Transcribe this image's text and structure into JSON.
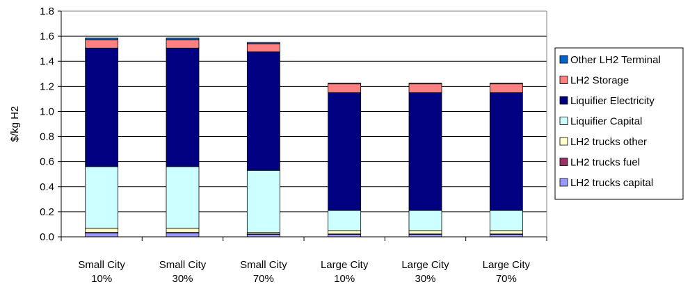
{
  "chart_data": {
    "type": "bar",
    "stacked": true,
    "title": "",
    "xlabel": "",
    "ylabel": "$/kg H2",
    "ylim": [
      0,
      1.8
    ],
    "yticks": [
      "0.0",
      "0.2",
      "0.4",
      "0.6",
      "0.8",
      "1.0",
      "1.2",
      "1.4",
      "1.6",
      "1.8"
    ],
    "grid": true,
    "legend_position": "right",
    "categories": [
      [
        "Small City",
        "10%"
      ],
      [
        "Small City",
        "30%"
      ],
      [
        "Small City",
        "70%"
      ],
      [
        "Large City",
        "10%"
      ],
      [
        "Large City",
        "30%"
      ],
      [
        "Large City",
        "70%"
      ]
    ],
    "series": [
      {
        "name": "LH2 trucks capital",
        "color": "#9999ff",
        "values": [
          0.03,
          0.03,
          0.02,
          0.02,
          0.02,
          0.02
        ]
      },
      {
        "name": "LH2 trucks fuel",
        "color": "#993366",
        "values": [
          0.005,
          0.005,
          0.003,
          0.003,
          0.003,
          0.003
        ]
      },
      {
        "name": "LH2 trucks other",
        "color": "#ffffcc",
        "values": [
          0.035,
          0.035,
          0.012,
          0.027,
          0.027,
          0.027
        ]
      },
      {
        "name": "Liquifier Capital",
        "color": "#ccffff",
        "values": [
          0.49,
          0.49,
          0.495,
          0.16,
          0.16,
          0.16
        ]
      },
      {
        "name": "Liquifier Electricity",
        "color": "#000080",
        "values": [
          0.945,
          0.945,
          0.945,
          0.94,
          0.94,
          0.94
        ]
      },
      {
        "name": "LH2 Storage",
        "color": "#ff8080",
        "values": [
          0.065,
          0.065,
          0.065,
          0.07,
          0.07,
          0.07
        ]
      },
      {
        "name": "Other LH2 Terminal",
        "color": "#0066cc",
        "values": [
          0.015,
          0.015,
          0.01,
          0.005,
          0.005,
          0.005
        ]
      }
    ],
    "legend_order": [
      "Other LH2 Terminal",
      "LH2 Storage",
      "Liquifier Electricity",
      "Liquifier Capital",
      "LH2 trucks other",
      "LH2 trucks fuel",
      "LH2 trucks capital"
    ]
  }
}
